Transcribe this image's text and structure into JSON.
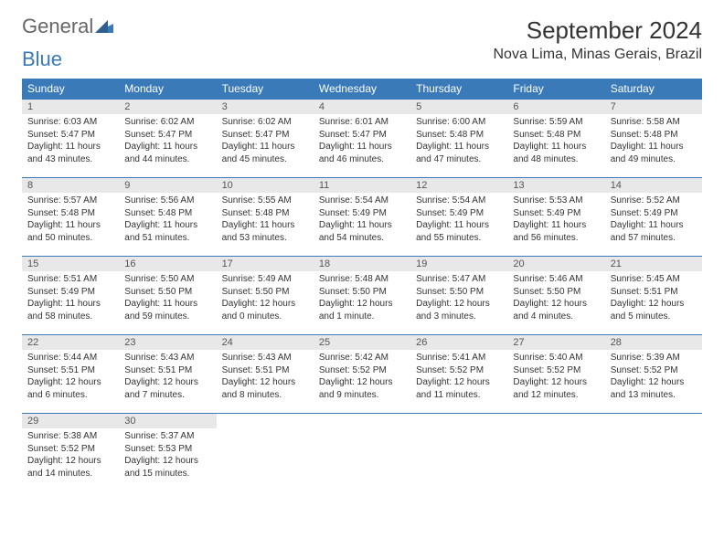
{
  "logo": {
    "text1": "General",
    "text2": "Blue"
  },
  "header": {
    "month_title": "September 2024",
    "location": "Nova Lima, Minas Gerais, Brazil"
  },
  "colors": {
    "header_bg": "#3a7ab8",
    "daynum_bg": "#e8e8e8",
    "text": "#333333",
    "logo_blue": "#3a7ab8"
  },
  "weekdays": [
    "Sunday",
    "Monday",
    "Tuesday",
    "Wednesday",
    "Thursday",
    "Friday",
    "Saturday"
  ],
  "days": [
    {
      "n": "1",
      "sunrise": "6:03 AM",
      "sunset": "5:47 PM",
      "daylight": "11 hours and 43 minutes."
    },
    {
      "n": "2",
      "sunrise": "6:02 AM",
      "sunset": "5:47 PM",
      "daylight": "11 hours and 44 minutes."
    },
    {
      "n": "3",
      "sunrise": "6:02 AM",
      "sunset": "5:47 PM",
      "daylight": "11 hours and 45 minutes."
    },
    {
      "n": "4",
      "sunrise": "6:01 AM",
      "sunset": "5:47 PM",
      "daylight": "11 hours and 46 minutes."
    },
    {
      "n": "5",
      "sunrise": "6:00 AM",
      "sunset": "5:48 PM",
      "daylight": "11 hours and 47 minutes."
    },
    {
      "n": "6",
      "sunrise": "5:59 AM",
      "sunset": "5:48 PM",
      "daylight": "11 hours and 48 minutes."
    },
    {
      "n": "7",
      "sunrise": "5:58 AM",
      "sunset": "5:48 PM",
      "daylight": "11 hours and 49 minutes."
    },
    {
      "n": "8",
      "sunrise": "5:57 AM",
      "sunset": "5:48 PM",
      "daylight": "11 hours and 50 minutes."
    },
    {
      "n": "9",
      "sunrise": "5:56 AM",
      "sunset": "5:48 PM",
      "daylight": "11 hours and 51 minutes."
    },
    {
      "n": "10",
      "sunrise": "5:55 AM",
      "sunset": "5:48 PM",
      "daylight": "11 hours and 53 minutes."
    },
    {
      "n": "11",
      "sunrise": "5:54 AM",
      "sunset": "5:49 PM",
      "daylight": "11 hours and 54 minutes."
    },
    {
      "n": "12",
      "sunrise": "5:54 AM",
      "sunset": "5:49 PM",
      "daylight": "11 hours and 55 minutes."
    },
    {
      "n": "13",
      "sunrise": "5:53 AM",
      "sunset": "5:49 PM",
      "daylight": "11 hours and 56 minutes."
    },
    {
      "n": "14",
      "sunrise": "5:52 AM",
      "sunset": "5:49 PM",
      "daylight": "11 hours and 57 minutes."
    },
    {
      "n": "15",
      "sunrise": "5:51 AM",
      "sunset": "5:49 PM",
      "daylight": "11 hours and 58 minutes."
    },
    {
      "n": "16",
      "sunrise": "5:50 AM",
      "sunset": "5:50 PM",
      "daylight": "11 hours and 59 minutes."
    },
    {
      "n": "17",
      "sunrise": "5:49 AM",
      "sunset": "5:50 PM",
      "daylight": "12 hours and 0 minutes."
    },
    {
      "n": "18",
      "sunrise": "5:48 AM",
      "sunset": "5:50 PM",
      "daylight": "12 hours and 1 minute."
    },
    {
      "n": "19",
      "sunrise": "5:47 AM",
      "sunset": "5:50 PM",
      "daylight": "12 hours and 3 minutes."
    },
    {
      "n": "20",
      "sunrise": "5:46 AM",
      "sunset": "5:50 PM",
      "daylight": "12 hours and 4 minutes."
    },
    {
      "n": "21",
      "sunrise": "5:45 AM",
      "sunset": "5:51 PM",
      "daylight": "12 hours and 5 minutes."
    },
    {
      "n": "22",
      "sunrise": "5:44 AM",
      "sunset": "5:51 PM",
      "daylight": "12 hours and 6 minutes."
    },
    {
      "n": "23",
      "sunrise": "5:43 AM",
      "sunset": "5:51 PM",
      "daylight": "12 hours and 7 minutes."
    },
    {
      "n": "24",
      "sunrise": "5:43 AM",
      "sunset": "5:51 PM",
      "daylight": "12 hours and 8 minutes."
    },
    {
      "n": "25",
      "sunrise": "5:42 AM",
      "sunset": "5:52 PM",
      "daylight": "12 hours and 9 minutes."
    },
    {
      "n": "26",
      "sunrise": "5:41 AM",
      "sunset": "5:52 PM",
      "daylight": "12 hours and 11 minutes."
    },
    {
      "n": "27",
      "sunrise": "5:40 AM",
      "sunset": "5:52 PM",
      "daylight": "12 hours and 12 minutes."
    },
    {
      "n": "28",
      "sunrise": "5:39 AM",
      "sunset": "5:52 PM",
      "daylight": "12 hours and 13 minutes."
    },
    {
      "n": "29",
      "sunrise": "5:38 AM",
      "sunset": "5:52 PM",
      "daylight": "12 hours and 14 minutes."
    },
    {
      "n": "30",
      "sunrise": "5:37 AM",
      "sunset": "5:53 PM",
      "daylight": "12 hours and 15 minutes."
    }
  ],
  "labels": {
    "sunrise_prefix": "Sunrise: ",
    "sunset_prefix": "Sunset: ",
    "daylight_prefix": "Daylight: "
  },
  "layout": {
    "start_weekday": 0,
    "total_cells": 35
  }
}
